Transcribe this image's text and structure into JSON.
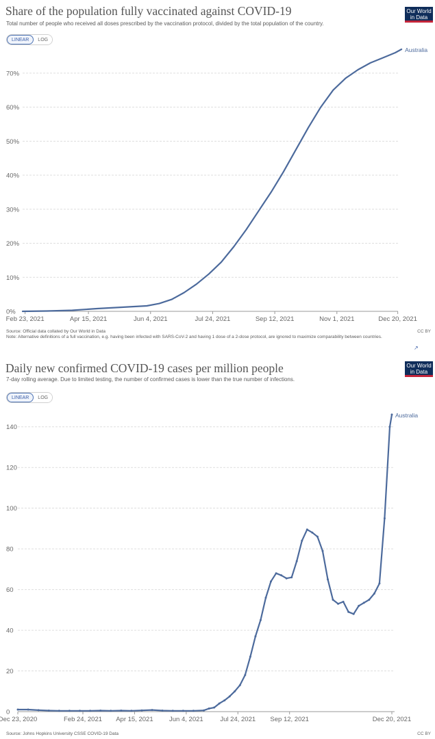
{
  "logo": {
    "line1": "Our World",
    "line2": "in Data"
  },
  "toggle": {
    "linear": "LINEAR",
    "log": "LOG"
  },
  "ccby": "CC BY",
  "corner_mark": "↗",
  "panel1": {
    "title": "Share of the population fully vaccinated against COVID-19",
    "subtitle": "Total number of people who received all doses prescribed by the vaccination protocol, divided by the total population of the country.",
    "source": "Source: Official data collated by Our World in Data",
    "note": "Note: Alternative definitions of a full vaccination, e.g. having been infected with SARS-CoV-2 and having 1 dose of a 2-dose protocol, are ignored to maximize comparability between countries."
  },
  "panel2": {
    "title": "Daily new confirmed COVID-19 cases per million people",
    "subtitle": "7-day rolling average. Due to limited testing, the number of confirmed cases is lower than the true number of infections.",
    "source": "Source: Johns Hopkins University CSSE COVID-19 Data"
  },
  "colors": {
    "series": "#4c6a9c",
    "grid": "#dddddd",
    "axis": "#999999"
  },
  "chart_data": [
    {
      "type": "line",
      "title": "Share of the population fully vaccinated against COVID-19",
      "xlabel": "",
      "ylabel": "",
      "x_range_days": [
        0,
        300
      ],
      "ylim": [
        0,
        76
      ],
      "yticks": [
        0,
        10,
        20,
        30,
        40,
        50,
        60,
        70
      ],
      "ytick_labels": [
        "0%",
        "10%",
        "20%",
        "30%",
        "40%",
        "50%",
        "60%",
        "70%"
      ],
      "xtick_days": [
        2,
        53,
        103,
        153,
        203,
        253,
        302
      ],
      "xtick_labels": [
        "Feb 23, 2021",
        "Apr 15, 2021",
        "Jun 4, 2021",
        "Jul 24, 2021",
        "Sep 12, 2021",
        "Nov 1, 2021",
        "Dec 20, 2021"
      ],
      "grid": true,
      "series": [
        {
          "name": "Australia",
          "label": "Australia",
          "x": [
            0,
            20,
            40,
            60,
            80,
            100,
            110,
            120,
            130,
            140,
            150,
            160,
            170,
            180,
            190,
            200,
            210,
            220,
            230,
            240,
            250,
            260,
            270,
            280,
            290,
            300,
            305
          ],
          "values": [
            0,
            0.1,
            0.3,
            0.8,
            1.2,
            1.6,
            2.3,
            3.5,
            5.5,
            8,
            11,
            14.5,
            19,
            24,
            29.5,
            35,
            41,
            47.5,
            54,
            60,
            65,
            68.5,
            71,
            73,
            74.5,
            76,
            77
          ]
        }
      ]
    },
    {
      "type": "line",
      "title": "Daily new confirmed COVID-19 cases per million people",
      "xlabel": "",
      "ylabel": "",
      "x_range_days": [
        0,
        362
      ],
      "ylim": [
        0,
        150
      ],
      "yticks": [
        0,
        20,
        40,
        60,
        80,
        100,
        120,
        140
      ],
      "ytick_labels": [
        "0",
        "20",
        "40",
        "60",
        "80",
        "100",
        "120",
        "140"
      ],
      "xtick_days": [
        0,
        63,
        113,
        163,
        213,
        263,
        362
      ],
      "xtick_labels": [
        "Dec 23, 2020",
        "Feb 24, 2021",
        "Apr 15, 2021",
        "Jun 4, 2021",
        "Jul 24, 2021",
        "Sep 12, 2021",
        "Dec 20, 2021"
      ],
      "grid": true,
      "series": [
        {
          "name": "Australia",
          "label": "Australia",
          "x": [
            0,
            10,
            20,
            30,
            40,
            50,
            60,
            70,
            80,
            90,
            100,
            110,
            120,
            130,
            140,
            150,
            160,
            170,
            180,
            185,
            190,
            195,
            200,
            205,
            210,
            215,
            220,
            225,
            230,
            235,
            240,
            245,
            250,
            255,
            260,
            265,
            270,
            275,
            280,
            285,
            290,
            295,
            300,
            305,
            310,
            315,
            320,
            325,
            330,
            335,
            340,
            345,
            350,
            355,
            360,
            362
          ],
          "values": [
            1,
            1,
            0.7,
            0.5,
            0.4,
            0.4,
            0.4,
            0.4,
            0.5,
            0.4,
            0.5,
            0.4,
            0.6,
            0.8,
            0.5,
            0.4,
            0.4,
            0.4,
            0.6,
            1.5,
            2,
            4,
            5.5,
            7.5,
            10,
            13,
            18,
            27,
            37,
            45,
            56,
            64,
            68,
            67,
            65.5,
            66,
            74,
            84,
            89.5,
            88,
            86,
            79,
            65,
            55,
            53,
            54,
            49,
            48,
            52,
            53.5,
            55,
            58,
            63,
            95,
            140,
            146
          ]
        }
      ]
    }
  ]
}
